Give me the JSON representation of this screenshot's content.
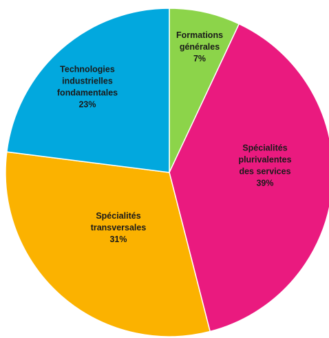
{
  "chart_data": {
    "type": "pie",
    "start_angle_deg": 0,
    "direction": "clockwise",
    "slices": [
      {
        "label_lines": [
          "Formations",
          "générales"
        ],
        "percent_label": "7%",
        "value": 7,
        "color": "#8cd44a"
      },
      {
        "label_lines": [
          "Spécialités",
          "plurivalentes",
          "des services"
        ],
        "percent_label": "39%",
        "value": 39,
        "color": "#ea1a7f"
      },
      {
        "label_lines": [
          "Spécialités",
          "transversales"
        ],
        "percent_label": "31%",
        "value": 31,
        "color": "#fbb200"
      },
      {
        "label_lines": [
          "Technologies",
          "industrielles",
          "fondamentales"
        ],
        "percent_label": "23%",
        "value": 23,
        "color": "#02a8de"
      }
    ]
  }
}
